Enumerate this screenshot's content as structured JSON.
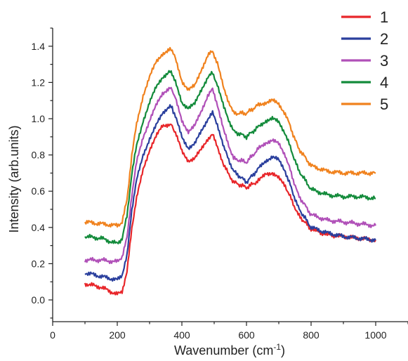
{
  "chart_data": {
    "type": "line",
    "title": "",
    "xlabel": "Wavenumber (cm",
    "xlabel_sup": "-1",
    "xlabel_suffix": ")",
    "ylabel": "Intensity (arb.units)",
    "xlim": [
      0,
      1100
    ],
    "ylim": [
      -0.12,
      1.5
    ],
    "x_ticks": [
      0,
      200,
      400,
      600,
      800,
      1000
    ],
    "y_ticks": [
      0.0,
      0.2,
      0.4,
      0.6,
      0.8,
      1.0,
      1.2,
      1.4
    ],
    "grid": false,
    "legend_position": "top-right",
    "x": [
      100,
      150,
      200,
      215,
      230,
      245,
      260,
      280,
      300,
      320,
      340,
      360,
      370,
      380,
      400,
      420,
      440,
      460,
      480,
      495,
      510,
      530,
      560,
      600,
      640,
      660,
      680,
      700,
      720,
      760,
      800,
      850,
      900,
      950,
      1000
    ],
    "series": [
      {
        "name": "1",
        "color": "#e8262a",
        "values": [
          0.09,
          0.07,
          0.03,
          0.05,
          0.15,
          0.4,
          0.56,
          0.72,
          0.83,
          0.9,
          0.96,
          0.97,
          0.96,
          0.92,
          0.82,
          0.77,
          0.78,
          0.83,
          0.89,
          0.91,
          0.85,
          0.74,
          0.65,
          0.62,
          0.66,
          0.7,
          0.7,
          0.67,
          0.63,
          0.47,
          0.39,
          0.36,
          0.35,
          0.34,
          0.33
        ]
      },
      {
        "name": "2",
        "color": "#2a3f9d",
        "values": [
          0.15,
          0.13,
          0.11,
          0.14,
          0.24,
          0.5,
          0.66,
          0.8,
          0.89,
          0.96,
          1.03,
          1.07,
          1.06,
          1.01,
          0.9,
          0.84,
          0.86,
          0.93,
          1.0,
          1.03,
          0.97,
          0.84,
          0.71,
          0.65,
          0.73,
          0.77,
          0.79,
          0.77,
          0.71,
          0.51,
          0.4,
          0.37,
          0.35,
          0.34,
          0.33
        ]
      },
      {
        "name": "3",
        "color": "#b050b8",
        "values": [
          0.22,
          0.22,
          0.21,
          0.24,
          0.34,
          0.58,
          0.76,
          0.9,
          0.99,
          1.07,
          1.14,
          1.17,
          1.16,
          1.11,
          0.99,
          0.93,
          0.96,
          1.04,
          1.13,
          1.16,
          1.08,
          0.93,
          0.78,
          0.76,
          0.84,
          0.87,
          0.88,
          0.86,
          0.8,
          0.58,
          0.47,
          0.44,
          0.43,
          0.42,
          0.41
        ]
      },
      {
        "name": "4",
        "color": "#138b3b",
        "values": [
          0.35,
          0.34,
          0.31,
          0.34,
          0.46,
          0.7,
          0.85,
          0.99,
          1.09,
          1.17,
          1.23,
          1.26,
          1.25,
          1.2,
          1.09,
          1.06,
          1.08,
          1.16,
          1.23,
          1.25,
          1.19,
          1.06,
          0.93,
          0.9,
          0.96,
          0.99,
          1.0,
          0.98,
          0.92,
          0.72,
          0.61,
          0.58,
          0.57,
          0.57,
          0.56
        ]
      },
      {
        "name": "5",
        "color": "#f0821e",
        "values": [
          0.43,
          0.42,
          0.41,
          0.43,
          0.55,
          0.8,
          0.97,
          1.13,
          1.23,
          1.31,
          1.36,
          1.38,
          1.38,
          1.33,
          1.21,
          1.16,
          1.18,
          1.27,
          1.35,
          1.37,
          1.31,
          1.16,
          1.03,
          1.03,
          1.08,
          1.09,
          1.1,
          1.08,
          1.03,
          0.84,
          0.74,
          0.71,
          0.7,
          0.7,
          0.7
        ]
      }
    ]
  }
}
